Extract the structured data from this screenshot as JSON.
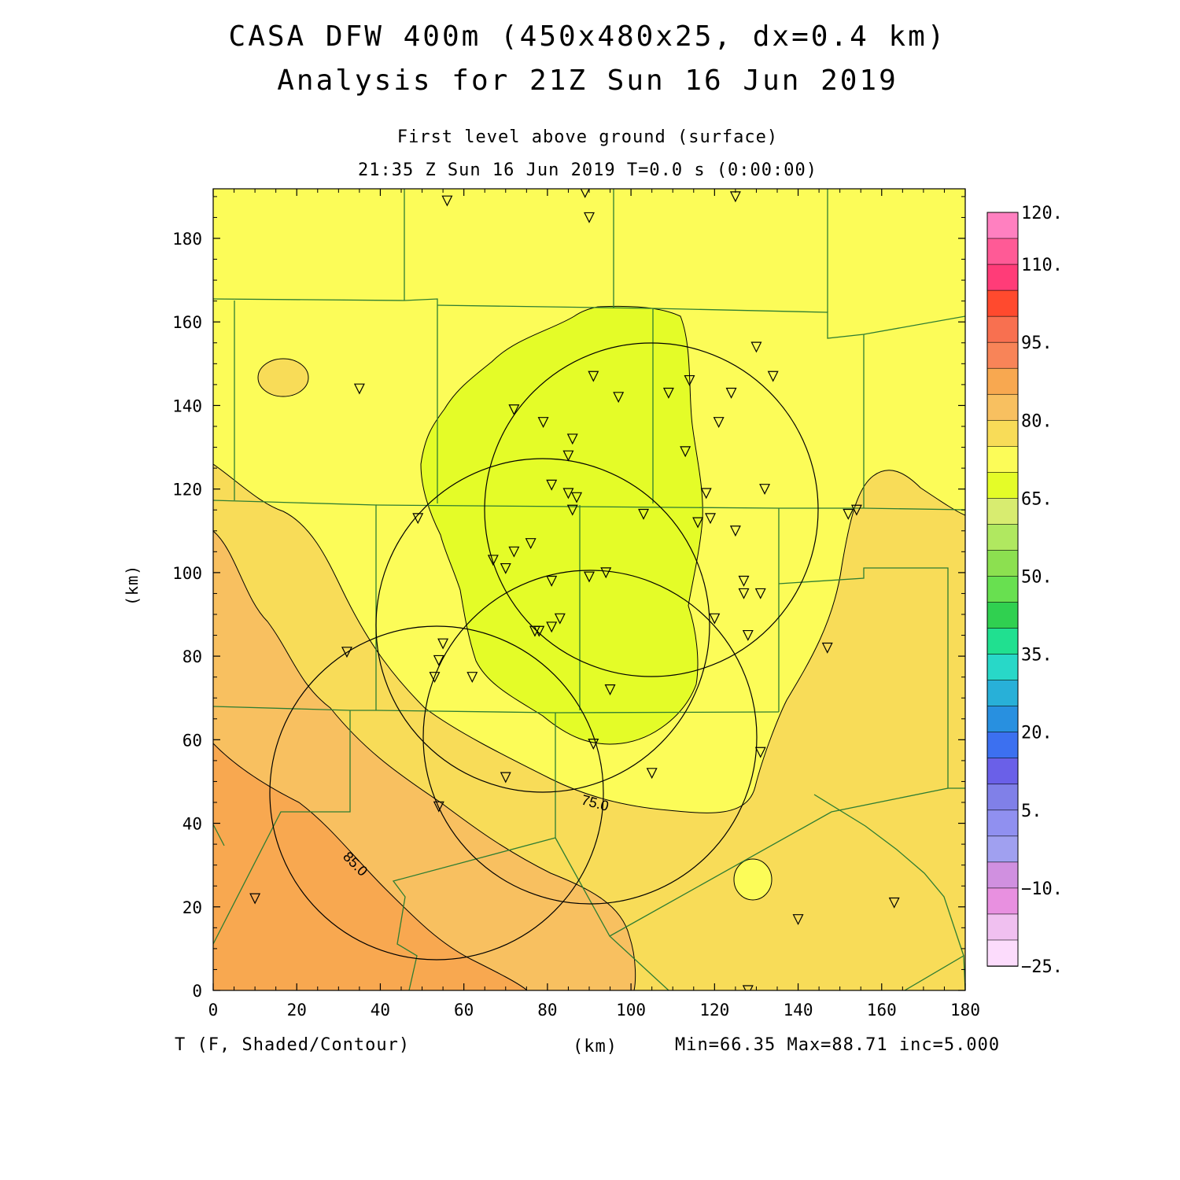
{
  "header": {
    "title_line1": "CASA DFW 400m (450x480x25, dx=0.4 km)",
    "title_line2": "Analysis for 21Z Sun 16 Jun 2019",
    "level": "First level above ground (surface)",
    "time": "21:35 Z Sun 16 Jun 2019    T=0.0 s (0:00:00)"
  },
  "footer": {
    "variable": "T (F, Shaded/Contour)",
    "x_unit": "(km)",
    "stats": "Min=66.35 Max=88.71 inc=5.000"
  },
  "axes": {
    "y_label": "(km)",
    "x_ticks": [
      "0",
      "20",
      "40",
      "60",
      "80",
      "100",
      "120",
      "140",
      "160",
      "180"
    ],
    "y_ticks": [
      "0",
      "20",
      "40",
      "60",
      "80",
      "100",
      "120",
      "140",
      "160",
      "180"
    ]
  },
  "colorbar": {
    "labels": [
      "120.",
      "110.",
      "95.",
      "80.",
      "65.",
      "50.",
      "35.",
      "20.",
      "5.",
      "−10.",
      "−25."
    ],
    "colors": [
      "#ff80c0",
      "#ff5a96",
      "#ff3c78",
      "#ff4a2e",
      "#f87050",
      "#f88458",
      "#f8a850",
      "#f8c060",
      "#f8dc58",
      "#fcfc58",
      "#e4fc28",
      "#d8ec70",
      "#b0e860",
      "#8ce050",
      "#68e050",
      "#30d050",
      "#20e090",
      "#28d8c8",
      "#28b0d8",
      "#2890e0",
      "#3c70f0",
      "#6a60e8",
      "#8080e8",
      "#9090f0",
      "#a0a0f0",
      "#d090e0",
      "#e890e0",
      "#f0c0f0",
      "#fcdcfc"
    ]
  },
  "chart_data": {
    "type": "heatmap",
    "variable": "T",
    "units": "F",
    "xlabel": "(km)",
    "ylabel": "(km)",
    "xlim": [
      0,
      180
    ],
    "ylim": [
      0,
      192
    ],
    "min": 66.35,
    "max": 88.71,
    "inc": 5.0,
    "contour_labels": [
      "75.0",
      "85.0"
    ],
    "colorbar_levels": [
      -25,
      -10,
      5,
      20,
      35,
      50,
      65,
      80,
      95,
      110,
      120
    ],
    "stations_km": [
      [
        56,
        189
      ],
      [
        89,
        191
      ],
      [
        90,
        185
      ],
      [
        125,
        190
      ],
      [
        35,
        144
      ],
      [
        72,
        139
      ],
      [
        79,
        136
      ],
      [
        91,
        147
      ],
      [
        97,
        142
      ],
      [
        109,
        143
      ],
      [
        114,
        146
      ],
      [
        124,
        143
      ],
      [
        130,
        154
      ],
      [
        134,
        147
      ],
      [
        86,
        132
      ],
      [
        85,
        128
      ],
      [
        113,
        129
      ],
      [
        121,
        136
      ],
      [
        81,
        121
      ],
      [
        85,
        119
      ],
      [
        87,
        118
      ],
      [
        86,
        115
      ],
      [
        118,
        119
      ],
      [
        132,
        120
      ],
      [
        49,
        113
      ],
      [
        103,
        114
      ],
      [
        116,
        112
      ],
      [
        119,
        113
      ],
      [
        125,
        110
      ],
      [
        152,
        114
      ],
      [
        154,
        115
      ],
      [
        67,
        103
      ],
      [
        70,
        101
      ],
      [
        72,
        105
      ],
      [
        76,
        107
      ],
      [
        81,
        98
      ],
      [
        90,
        99
      ],
      [
        94,
        100
      ],
      [
        127,
        98
      ],
      [
        127,
        95
      ],
      [
        131,
        95
      ],
      [
        83,
        89
      ],
      [
        81,
        87
      ],
      [
        78,
        86
      ],
      [
        77,
        86
      ],
      [
        120,
        89
      ],
      [
        128,
        85
      ],
      [
        147,
        82
      ],
      [
        32,
        81
      ],
      [
        55,
        83
      ],
      [
        54,
        79
      ],
      [
        53,
        75
      ],
      [
        62,
        75
      ],
      [
        95,
        72
      ],
      [
        91,
        59
      ],
      [
        131,
        57
      ],
      [
        70,
        51
      ],
      [
        105,
        52
      ],
      [
        54,
        44
      ],
      [
        10,
        22
      ],
      [
        140,
        17
      ],
      [
        163,
        21
      ],
      [
        128,
        0
      ]
    ]
  }
}
